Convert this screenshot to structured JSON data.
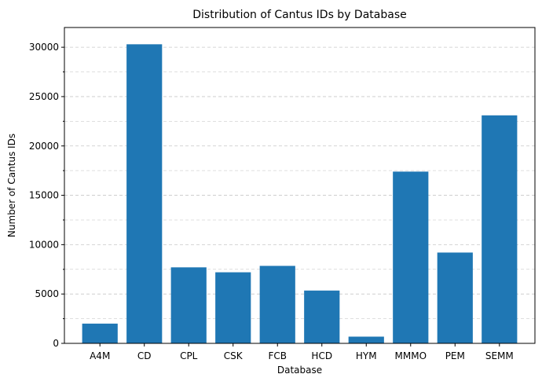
{
  "chart_data": {
    "type": "bar",
    "title": "Distribution of Cantus IDs by Database",
    "xlabel": "Database",
    "ylabel": "Number of Cantus IDs",
    "categories": [
      "A4M",
      "CD",
      "CPL",
      "CSK",
      "FCB",
      "HCD",
      "HYM",
      "MMMO",
      "PEM",
      "SEMM"
    ],
    "values": [
      2000,
      30300,
      7700,
      7200,
      7850,
      5350,
      680,
      17400,
      9200,
      23100
    ],
    "ylim": [
      0,
      32000
    ],
    "yticks": [
      0,
      5000,
      10000,
      15000,
      20000,
      25000,
      30000
    ],
    "ytick_labels": [
      "0",
      "5000",
      "10000",
      "15000",
      "20000",
      "25000",
      "30000"
    ],
    "grid": "y-dashed, major and minor",
    "bar_color": "#1f77b4"
  }
}
